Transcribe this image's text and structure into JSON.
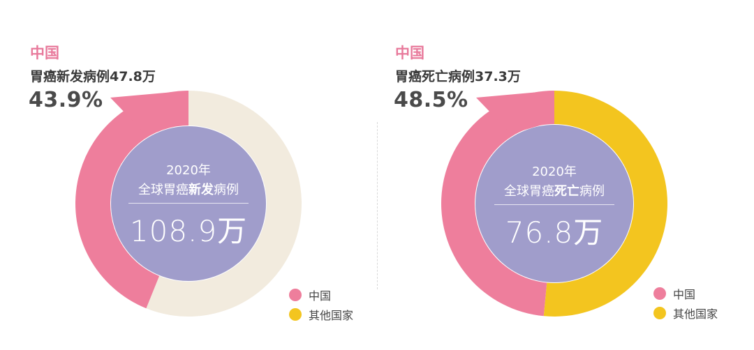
{
  "colors": {
    "china": "#ee7e9c",
    "other_left": "#f2ebde",
    "other_right": "#f3c51f",
    "center": "#a09dcb"
  },
  "left": {
    "country": "中国",
    "subtitle_text": "胃癌新发病例",
    "subtitle_num": "47.8万",
    "pct": "43.9%",
    "center": {
      "year": "2020年",
      "title_prefix": "全球胃癌",
      "title_bold": "新发",
      "title_suffix": "病例",
      "value": "108.9万"
    },
    "legend": [
      "中国",
      "其他国家"
    ]
  },
  "right": {
    "country": "中国",
    "subtitle_text": "胃癌死亡病例",
    "subtitle_num": "37.3万",
    "pct": "48.5%",
    "center": {
      "year": "2020年",
      "title_prefix": "全球胃癌",
      "title_bold": "死亡",
      "title_suffix": "病例",
      "value": "76.8万"
    },
    "legend": [
      "中国",
      "其他国家"
    ]
  },
  "chart_data": [
    {
      "type": "pie",
      "title": "2020年全球胃癌新发病例 108.9万",
      "categories": [
        "中国",
        "其他国家"
      ],
      "values": [
        43.9,
        56.1
      ],
      "unit": "%"
    },
    {
      "type": "pie",
      "title": "2020年全球胃癌死亡病例 76.8万",
      "categories": [
        "中国",
        "其他国家"
      ],
      "values": [
        48.5,
        51.5
      ],
      "unit": "%"
    }
  ]
}
